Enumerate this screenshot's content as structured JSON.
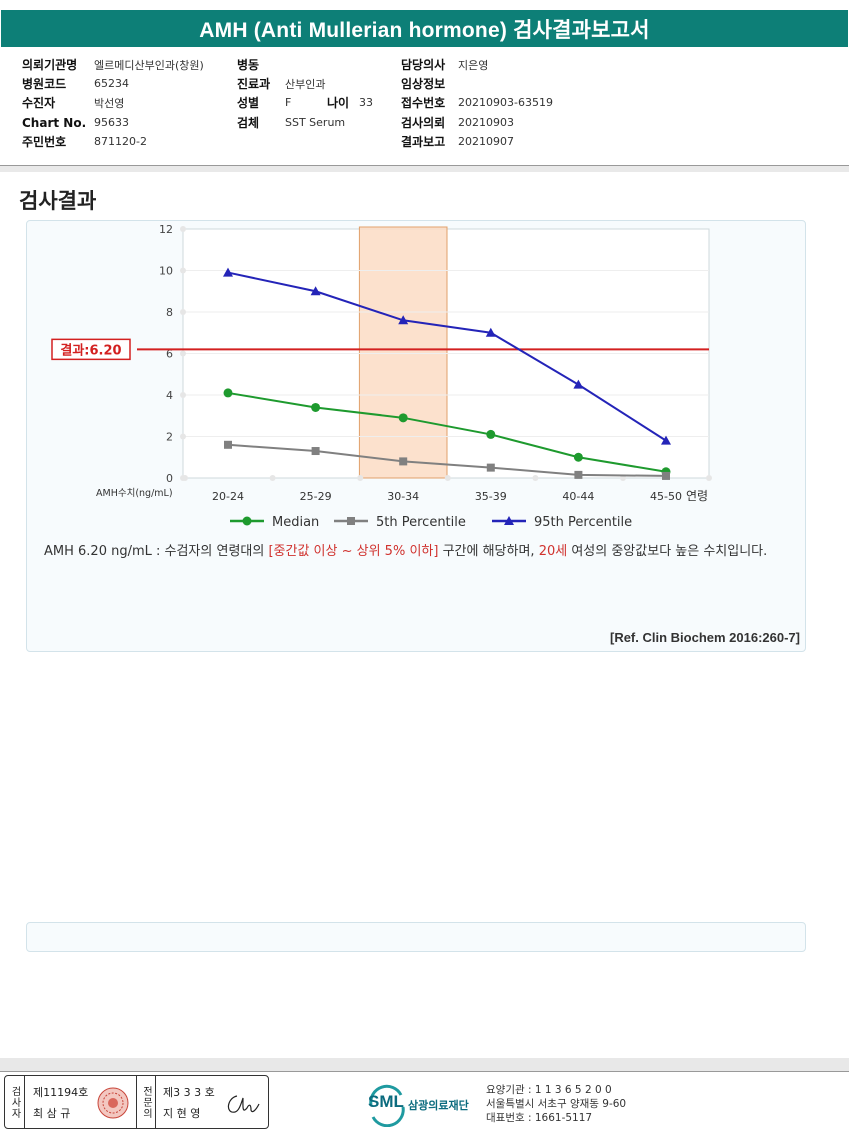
{
  "title": "AMH (Anti Mullerian hormone) 검사결과보고서",
  "patient": {
    "col1": [
      {
        "label": "의뢰기관명",
        "value": "엘르메디산부인과(창원)"
      },
      {
        "label": "병원코드",
        "value": "65234"
      },
      {
        "label": "수진자",
        "value": "박선영"
      },
      {
        "label": "Chart No.",
        "value": "95633"
      },
      {
        "label": "주민번호",
        "value": "871120-2"
      }
    ],
    "col2": [
      {
        "label": "병동",
        "value": ""
      },
      {
        "label": "진료과",
        "value": "산부인과"
      },
      {
        "label": "성별",
        "value": "F"
      },
      {
        "label": "검체",
        "value": "SST Serum"
      }
    ],
    "age_label": "나이",
    "age_value": "33",
    "col3": [
      {
        "label": "담당의사",
        "value": "지은영"
      },
      {
        "label": "임상정보",
        "value": ""
      },
      {
        "label": "접수번호",
        "value": "20210903-63519"
      },
      {
        "label": "검사의뢰",
        "value": "20210903"
      },
      {
        "label": "결과보고",
        "value": "20210907"
      }
    ]
  },
  "section_title": "검사결과",
  "chart_data": {
    "type": "line",
    "categories": [
      "20-24",
      "25-29",
      "30-34",
      "35-39",
      "40-44",
      "45-50"
    ],
    "x_axis_suffix": "연령",
    "ylabel": "AMH수치(ng/mL)",
    "ylim": [
      0,
      12
    ],
    "yticks": [
      0,
      2,
      4,
      6,
      8,
      10,
      12
    ],
    "grid": true,
    "highlight_category": "30-34",
    "result_line": {
      "value": 6.2,
      "label": "결과:6.20",
      "color": "#d32020"
    },
    "series": [
      {
        "name": "Median",
        "values": [
          4.1,
          3.4,
          2.9,
          2.1,
          1.0,
          0.3
        ],
        "color": "#1e9a2e",
        "marker": "circle"
      },
      {
        "name": "5th Percentile",
        "values": [
          1.6,
          1.3,
          0.8,
          0.5,
          0.15,
          0.1
        ],
        "color": "#808080",
        "marker": "square"
      },
      {
        "name": "95th Percentile",
        "values": [
          9.9,
          9.0,
          7.6,
          7.0,
          4.5,
          1.8
        ],
        "color": "#2424b8",
        "marker": "triangle"
      }
    ]
  },
  "description": {
    "part1": "AMH  6.20 ng/mL : 수검자의 연령대의 ",
    "red1": "[중간값 이상 ~ 상위 5% 이하]",
    "part2": " 구간에 해당하며, ",
    "red2": "20세",
    "part3": " 여성의 중앙값보다 높은 수치입니다."
  },
  "reference": "[Ref. Clin Biochem 2016:260-7]",
  "footer": {
    "inspector_label": "검사자",
    "inspector_no": "제11194호",
    "inspector_name": "최 삼 규",
    "specialist_label": "전문의",
    "specialist_no": "제3 3 3 호",
    "specialist_name": "지 현 영",
    "logo_text": "SML",
    "org_name": "삼광의료재단",
    "contact_1": "요양기관 : 1 1 3 6 5 2 0 0",
    "contact_2": "서울특별시 서초구 양재동 9-60",
    "contact_3": "대표번호 : 1661-5117",
    "brand_color": "#0d7f77"
  }
}
